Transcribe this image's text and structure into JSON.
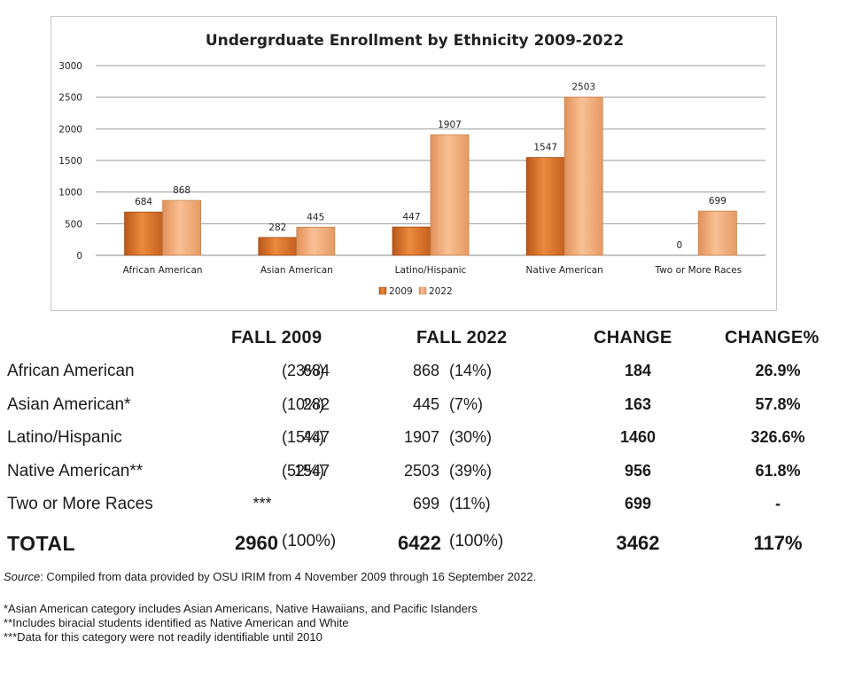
{
  "chart_data": {
    "type": "bar",
    "title": "Undergrduate Enrollment by Ethnicity 2009-2022",
    "categories": [
      "African American",
      "Asian American",
      "Latino/Hispanic",
      "Native American",
      "Two or More Races"
    ],
    "series": [
      {
        "name": "2009",
        "values": [
          684,
          282,
          447,
          1547,
          0
        ],
        "color": "#e07b2a"
      },
      {
        "name": "2022",
        "values": [
          868,
          445,
          1907,
          2503,
          699
        ],
        "color": "#f2a66d"
      }
    ],
    "ylim": [
      0,
      3000
    ],
    "yticks": [
      0,
      500,
      1000,
      1500,
      2000,
      2500,
      3000
    ],
    "grid": true,
    "legend": "bottom"
  },
  "table": {
    "headers": {
      "fall2009": "FALL 2009",
      "fall2022": "FALL 2022",
      "change": "CHANGE",
      "change_pct": "CHANGE%"
    },
    "rows": [
      {
        "label": "African American",
        "n09": "684",
        "p09": "(23%)",
        "n22": "868",
        "p22": "(14%)",
        "change": "184",
        "change_pct": "26.9%"
      },
      {
        "label": "Asian American*",
        "n09": "282",
        "p09": "(10%)",
        "n22": "445",
        "p22": "(7%)",
        "change": "163",
        "change_pct": "57.8%"
      },
      {
        "label": "Latino/Hispanic",
        "n09": "447",
        "p09": "(15%)",
        "n22": "1907",
        "p22": "(30%)",
        "change": "1460",
        "change_pct": "326.6%"
      },
      {
        "label": "Native American**",
        "n09": "1547",
        "p09": "(52%)",
        "n22": "2503",
        "p22": "(39%)",
        "change": "956",
        "change_pct": "61.8%"
      },
      {
        "label": "Two or More Races",
        "n09": "***",
        "p09": "",
        "n22": "699",
        "p22": "(11%)",
        "change": "699",
        "change_pct": "-"
      }
    ],
    "total": {
      "label": "TOTAL",
      "n09": "2960",
      "p09": "(100%)",
      "n22": "6422",
      "p22": "(100%)",
      "change": "3462",
      "change_pct": "117%"
    }
  },
  "notes": {
    "source_label": "Source",
    "source_text": ": Compiled from data provided by OSU IRIM from 4 November 2009 through 16 September 2022.",
    "footnotes": [
      "*Asian American category includes Asian Americans, Native Hawaiians, and Pacific Islanders",
      "**Includes biracial students identified as Native American and White",
      "***Data for this category were not readily identifiable until 2010"
    ]
  }
}
